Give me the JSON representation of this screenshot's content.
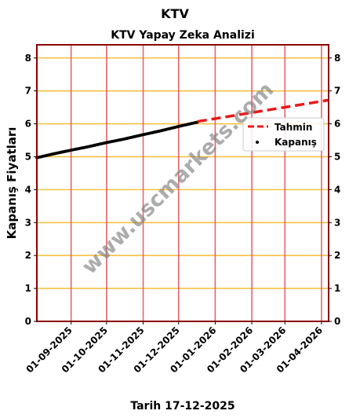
{
  "page": {
    "title": "KTV",
    "subtitle": "KTV Yapay Zeka Analizi",
    "xlabel": "Tarih 17-12-2025",
    "watermark": "www.uscmarkets.com"
  },
  "chart_data": {
    "type": "line",
    "title": "KTV",
    "subtitle": "KTV Yapay Zeka Analizi",
    "xlabel": "Tarih 17-12-2025",
    "ylabel": "Kapanış Fiyatları",
    "ylim": [
      0,
      8.4
    ],
    "xlim": [
      "2025-08-03",
      "2026-04-07"
    ],
    "yticks": [
      0,
      1,
      2,
      3,
      4,
      5,
      6,
      7,
      8
    ],
    "xticks": [
      "2025-09-01",
      "2025-10-01",
      "2025-11-01",
      "2025-12-01",
      "2026-01-01",
      "2026-02-01",
      "2026-03-01",
      "2026-04-01"
    ],
    "xtick_labels": [
      "01-09-2025",
      "01-10-2025",
      "01-11-2025",
      "01-12-2025",
      "01-01-2026",
      "01-02-2026",
      "01-03-2026",
      "01-04-2026"
    ],
    "grid": true,
    "legend_position": "right",
    "colors": {
      "forecast": "#e8191a",
      "actual": "#000000",
      "h_grid": "#f5c242",
      "v_grid": "#e8646a",
      "frame": "#8b0000"
    },
    "series": [
      {
        "name": "Tahmin",
        "style": "dashed",
        "x": [
          "2025-12-17",
          "2026-04-07"
        ],
        "y": [
          6.07,
          6.72
        ]
      },
      {
        "name": "Kapanış",
        "style": "dots",
        "x": [
          "2025-08-03",
          "2025-08-15",
          "2025-09-01",
          "2025-09-15",
          "2025-10-01",
          "2025-10-15",
          "2025-11-01",
          "2025-11-15",
          "2025-12-01",
          "2025-12-17"
        ],
        "y": [
          4.97,
          5.07,
          5.2,
          5.3,
          5.43,
          5.53,
          5.67,
          5.78,
          5.92,
          6.05
        ]
      }
    ]
  }
}
